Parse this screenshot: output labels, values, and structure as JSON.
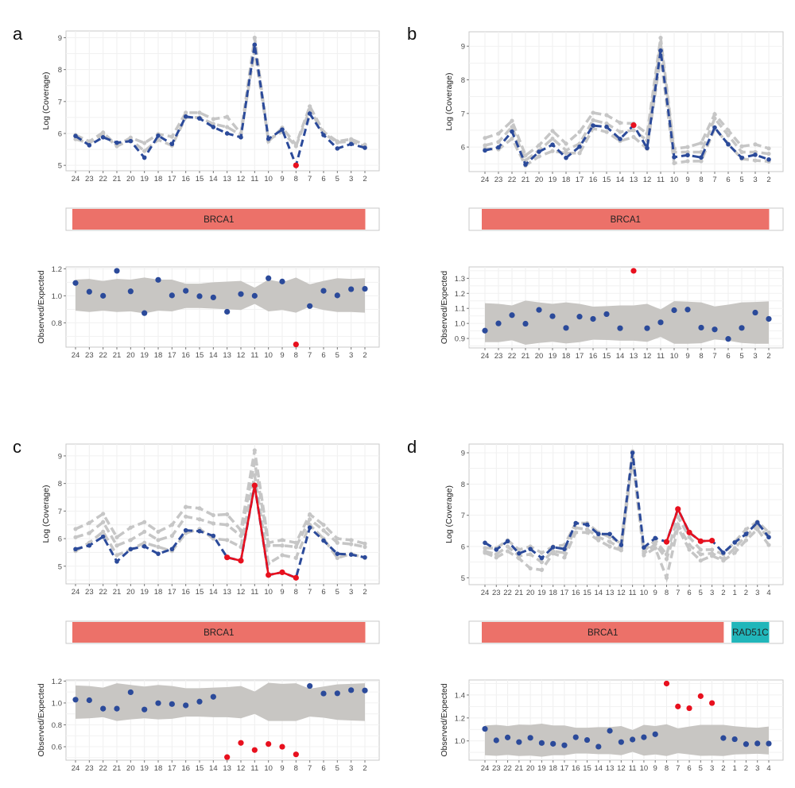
{
  "colors": {
    "sample": "#2B4A9A",
    "control": "#C6C6C6",
    "outlier": "#E8101E",
    "band": "#C8C6C3"
  },
  "chart_data": [
    {
      "letter": "a",
      "type": "line",
      "categories": [
        "24",
        "23",
        "22",
        "21",
        "20",
        "19",
        "18",
        "17",
        "16",
        "15",
        "14",
        "13",
        "12",
        "11",
        "10",
        "9",
        "8",
        "7",
        "6",
        "5",
        "3",
        "2"
      ],
      "outlier_indices": [
        16
      ],
      "coverage": {
        "ylabel": "Log (Coverage)",
        "ylim": [
          4.83,
          9.21
        ],
        "yticks": [
          "5",
          "6",
          "7",
          "8",
          "9"
        ],
        "sample": [
          5.92,
          5.63,
          5.88,
          5.71,
          5.76,
          5.24,
          5.93,
          5.67,
          6.53,
          6.47,
          6.2,
          6.0,
          5.88,
          8.78,
          5.83,
          6.12,
          5.0,
          6.62,
          5.95,
          5.53,
          5.67,
          5.55
        ],
        "controls": [
          [
            5.95,
            5.75,
            6.03,
            5.62,
            5.87,
            5.7,
            5.98,
            5.9,
            6.65,
            6.65,
            6.45,
            6.52,
            6.0,
            9.0,
            5.75,
            6.18,
            5.65,
            6.85,
            6.05,
            5.75,
            5.82,
            5.65
          ],
          [
            5.82,
            5.7,
            5.98,
            5.6,
            5.8,
            5.45,
            5.8,
            5.62,
            6.5,
            6.5,
            6.3,
            6.2,
            5.95,
            8.6,
            5.8,
            6.05,
            5.6,
            6.75,
            6.0,
            5.72,
            5.75,
            5.6
          ]
        ]
      },
      "genes": [
        {
          "name": "BRCA1",
          "color": "#EC7169",
          "first_index": 0,
          "last_index": 21
        }
      ],
      "ratio": {
        "ylabel": "Observed/Expected",
        "ylim": [
          0.62,
          1.214
        ],
        "yticks": [
          "0.8",
          "1.0",
          "1.2"
        ],
        "values": [
          1.095,
          1.03,
          1.0,
          1.185,
          1.033,
          0.872,
          1.118,
          1.003,
          1.037,
          0.997,
          0.988,
          0.882,
          1.013,
          1.0,
          1.13,
          1.106,
          0.64,
          0.924,
          1.037,
          1.003,
          1.049,
          1.052
        ],
        "band_upper": [
          1.12,
          1.125,
          1.11,
          1.125,
          1.12,
          1.135,
          1.12,
          1.12,
          1.09,
          1.09,
          1.1,
          1.105,
          1.11,
          1.06,
          1.12,
          1.1,
          1.135,
          1.085,
          1.11,
          1.13,
          1.125,
          1.13
        ],
        "band_lower": [
          0.89,
          0.88,
          0.89,
          0.88,
          0.885,
          0.87,
          0.89,
          0.885,
          0.91,
          0.91,
          0.905,
          0.9,
          0.895,
          0.94,
          0.885,
          0.895,
          0.875,
          0.92,
          0.895,
          0.88,
          0.88,
          0.875
        ]
      }
    },
    {
      "letter": "b",
      "type": "line",
      "categories": [
        "24",
        "23",
        "22",
        "21",
        "20",
        "19",
        "18",
        "17",
        "16",
        "15",
        "14",
        "13",
        "12",
        "11",
        "10",
        "9",
        "8",
        "7",
        "6",
        "5",
        "3",
        "2"
      ],
      "outlier_indices": [
        11
      ],
      "coverage": {
        "ylabel": "Log (Coverage)",
        "ylim": [
          5.27,
          9.43
        ],
        "yticks": [
          "6",
          "7",
          "8",
          "9"
        ],
        "sample": [
          5.9,
          5.99,
          6.46,
          5.48,
          5.86,
          6.07,
          5.68,
          6.01,
          6.64,
          6.6,
          6.24,
          6.65,
          5.97,
          8.87,
          5.7,
          5.76,
          5.69,
          6.58,
          6.08,
          5.68,
          5.77,
          5.63
        ],
        "controls": [
          [
            6.27,
            6.4,
            6.78,
            5.75,
            6.05,
            6.48,
            6.1,
            6.45,
            7.02,
            6.95,
            6.72,
            6.7,
            6.4,
            9.25,
            5.95,
            6.0,
            6.12,
            6.98,
            6.5,
            6.02,
            6.08,
            5.96
          ],
          [
            6.05,
            6.15,
            6.6,
            5.6,
            5.9,
            6.25,
            5.9,
            6.1,
            6.8,
            6.7,
            6.45,
            6.5,
            6.2,
            9.1,
            5.85,
            5.85,
            5.85,
            6.85,
            6.35,
            5.85,
            5.85,
            5.8
          ],
          [
            5.95,
            5.93,
            6.25,
            5.45,
            5.72,
            5.88,
            5.82,
            5.82,
            6.55,
            6.45,
            6.18,
            6.3,
            5.95,
            8.7,
            5.52,
            5.58,
            5.58,
            6.55,
            6.1,
            5.65,
            5.6,
            5.57
          ]
        ]
      },
      "genes": [
        {
          "name": "BRCA1",
          "color": "#EC7169",
          "first_index": 0,
          "last_index": 21
        }
      ],
      "ratio": {
        "ylabel": "Observed/Expected",
        "ylim": [
          0.837,
          1.376
        ],
        "yticks": [
          "0.9",
          "1.0",
          "1.1",
          "1.2",
          "1.3"
        ],
        "values": [
          0.952,
          1.0,
          1.055,
          0.998,
          1.09,
          1.048,
          0.97,
          1.045,
          1.03,
          1.062,
          0.968,
          1.35,
          0.968,
          1.007,
          1.088,
          1.092,
          0.972,
          0.96,
          0.897,
          0.97,
          1.072,
          1.03
        ],
        "band_upper": [
          1.135,
          1.13,
          1.12,
          1.152,
          1.14,
          1.13,
          1.14,
          1.13,
          1.112,
          1.115,
          1.12,
          1.12,
          1.13,
          1.093,
          1.148,
          1.145,
          1.14,
          1.113,
          1.125,
          1.14,
          1.143,
          1.147
        ],
        "band_lower": [
          0.875,
          0.875,
          0.888,
          0.858,
          0.87,
          0.878,
          0.867,
          0.875,
          0.892,
          0.89,
          0.885,
          0.885,
          0.877,
          0.91,
          0.865,
          0.865,
          0.868,
          0.893,
          0.885,
          0.87,
          0.865,
          0.865
        ]
      }
    },
    {
      "letter": "c",
      "type": "line",
      "categories": [
        "24",
        "23",
        "22",
        "21",
        "20",
        "19",
        "18",
        "17",
        "16",
        "15",
        "14",
        "13",
        "12",
        "11",
        "10",
        "9",
        "8",
        "7",
        "6",
        "5",
        "3",
        "2"
      ],
      "outlier_indices": [
        11,
        12,
        13,
        14,
        15,
        16
      ],
      "coverage": {
        "ylabel": "Log (Coverage)",
        "ylim": [
          4.36,
          9.43
        ],
        "yticks": [
          "5",
          "6",
          "7",
          "8",
          "9"
        ],
        "sample": [
          5.62,
          5.75,
          6.07,
          5.17,
          5.62,
          5.72,
          5.45,
          5.62,
          6.3,
          6.27,
          6.1,
          5.32,
          5.2,
          7.93,
          4.68,
          4.78,
          4.58,
          6.4,
          5.93,
          5.45,
          5.42,
          5.32
        ],
        "controls": [
          [
            6.35,
            6.57,
            6.9,
            6.05,
            6.4,
            6.6,
            6.25,
            6.5,
            7.15,
            7.1,
            6.85,
            6.88,
            6.3,
            9.2,
            5.85,
            5.95,
            5.85,
            6.88,
            6.5,
            6.0,
            5.95,
            5.82
          ],
          [
            6.05,
            6.2,
            6.6,
            5.75,
            5.95,
            6.25,
            5.95,
            6.1,
            6.8,
            6.7,
            6.55,
            6.5,
            6.1,
            8.8,
            5.75,
            5.75,
            5.7,
            6.7,
            6.3,
            5.85,
            5.8,
            5.7
          ],
          [
            5.55,
            5.85,
            6.25,
            5.4,
            5.6,
            5.85,
            5.7,
            5.55,
            6.2,
            6.35,
            6.0,
            5.95,
            5.7,
            8.3,
            5.1,
            5.4,
            5.3,
            6.5,
            6.0,
            5.3,
            5.45,
            5.3
          ]
        ]
      },
      "genes": [
        {
          "name": "BRCA1",
          "color": "#EC7169",
          "first_index": 0,
          "last_index": 21
        }
      ],
      "ratio": {
        "ylabel": "Observed/Expected",
        "ylim": [
          0.477,
          1.21
        ],
        "yticks": [
          "0.6",
          "0.8",
          "1.0",
          "1.2"
        ],
        "values": [
          1.03,
          1.025,
          0.948,
          0.948,
          1.098,
          0.94,
          0.998,
          0.99,
          0.978,
          1.012,
          1.056,
          0.505,
          0.635,
          0.57,
          0.625,
          0.6,
          0.53,
          1.155,
          1.086,
          1.088,
          1.117,
          1.114
        ],
        "band_upper": [
          1.16,
          1.155,
          1.14,
          1.18,
          1.165,
          1.15,
          1.165,
          1.155,
          1.135,
          1.135,
          1.14,
          1.145,
          1.155,
          1.105,
          1.185,
          1.175,
          1.18,
          1.13,
          1.15,
          1.17,
          1.175,
          1.18
        ],
        "band_lower": [
          0.855,
          0.86,
          0.87,
          0.835,
          0.85,
          0.86,
          0.85,
          0.855,
          0.875,
          0.875,
          0.87,
          0.87,
          0.86,
          0.9,
          0.835,
          0.835,
          0.835,
          0.875,
          0.865,
          0.845,
          0.84,
          0.835
        ]
      }
    },
    {
      "letter": "d",
      "type": "line",
      "categories": [
        "24",
        "23",
        "22",
        "21",
        "20",
        "19",
        "18",
        "17",
        "16",
        "15",
        "14",
        "13",
        "12",
        "11",
        "10",
        "9",
        "8",
        "7",
        "6",
        "5",
        "3",
        "2",
        "1",
        "2",
        "3",
        "4"
      ],
      "outlier_indices": [
        16,
        17,
        18,
        19,
        20
      ],
      "coverage": {
        "ylabel": "Log (Coverage)",
        "ylim": [
          4.78,
          9.28
        ],
        "yticks": [
          "5",
          "6",
          "7",
          "8",
          "9"
        ],
        "sample": [
          6.12,
          5.9,
          6.17,
          5.78,
          5.92,
          5.63,
          5.98,
          5.92,
          6.75,
          6.7,
          6.4,
          6.4,
          6.05,
          9.0,
          5.97,
          6.27,
          6.15,
          7.2,
          6.45,
          6.17,
          6.19,
          5.8,
          6.13,
          6.4,
          6.77,
          6.3
        ],
        "controls": [
          [
            5.95,
            5.95,
            6.2,
            5.9,
            6.0,
            5.8,
            6.0,
            6.05,
            6.75,
            6.75,
            6.45,
            6.3,
            6.1,
            9.05,
            5.85,
            6.2,
            5.75,
            6.95,
            6.3,
            5.9,
            5.9,
            5.75,
            6.15,
            6.55,
            6.8,
            6.45
          ],
          [
            5.85,
            5.75,
            6.0,
            5.7,
            5.75,
            5.5,
            5.85,
            5.8,
            6.6,
            6.55,
            6.3,
            6.15,
            5.95,
            8.9,
            5.78,
            6.08,
            5.6,
            6.7,
            6.05,
            5.75,
            5.78,
            5.6,
            5.95,
            6.35,
            6.65,
            6.3
          ],
          [
            5.8,
            5.65,
            5.85,
            5.62,
            5.3,
            5.25,
            5.78,
            5.65,
            6.45,
            6.45,
            6.2,
            6.0,
            5.88,
            8.8,
            5.72,
            5.95,
            5.0,
            6.6,
            5.9,
            5.55,
            5.7,
            5.55,
            5.8,
            6.2,
            6.55,
            6.05
          ]
        ]
      },
      "genes": [
        {
          "name": "BRCA1",
          "color": "#EC7169",
          "first_index": 0,
          "last_index": 21
        },
        {
          "name": "RAD51C",
          "color": "#21B6BA",
          "first_index": 22,
          "last_index": 25
        }
      ],
      "ratio": {
        "ylabel": "Observed/Expected",
        "ylim": [
          0.832,
          1.531
        ],
        "yticks": [
          "1.0",
          "1.2",
          "1.4"
        ],
        "values": [
          1.105,
          1.005,
          1.03,
          0.99,
          1.027,
          0.982,
          0.975,
          0.962,
          1.032,
          1.008,
          0.95,
          1.088,
          0.99,
          1.012,
          1.032,
          1.058,
          1.5,
          1.3,
          1.285,
          1.39,
          1.33,
          1.025,
          1.015,
          0.972,
          0.978,
          0.977
        ],
        "band_upper": [
          1.135,
          1.14,
          1.13,
          1.143,
          1.14,
          1.15,
          1.135,
          1.135,
          1.115,
          1.115,
          1.12,
          1.12,
          1.13,
          1.095,
          1.14,
          1.13,
          1.145,
          1.11,
          1.125,
          1.14,
          1.14,
          1.14,
          1.128,
          1.12,
          1.115,
          1.125
        ],
        "band_lower": [
          0.875,
          0.87,
          0.878,
          0.868,
          0.872,
          0.862,
          0.875,
          0.875,
          0.89,
          0.89,
          0.885,
          0.885,
          0.875,
          0.905,
          0.872,
          0.882,
          0.868,
          0.893,
          0.882,
          0.87,
          0.872,
          0.868,
          0.882,
          0.885,
          0.888,
          0.882
        ]
      }
    }
  ]
}
